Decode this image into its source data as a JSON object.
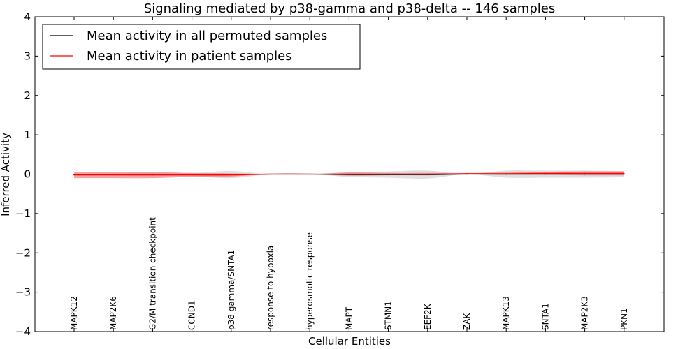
{
  "chart_data": {
    "type": "line",
    "title": "Signaling mediated by p38-gamma and p38-delta -- 146 samples",
    "xlabel": "Cellular Entities",
    "ylabel": "Inferred Activity",
    "ylim": [
      -4,
      4
    ],
    "yticks": [
      4,
      3,
      2,
      1,
      0,
      -1,
      -2,
      -3,
      -4
    ],
    "ytick_labels": [
      "4",
      "3",
      "2",
      "1",
      "0",
      "−1",
      "−2",
      "−3",
      "−4"
    ],
    "categories": [
      "MAPK12",
      "MAP2K6",
      "G2/M transition checkpoint",
      "CCND1",
      "p38 gamma/SNTA1",
      "response to hypoxia",
      "hyperosmotic response",
      "MAPT",
      "STMN1",
      "EEF2K",
      "ZAK",
      "MAPK13",
      "SNTA1",
      "MAP2K3",
      "PKN1"
    ],
    "legend_position": "top-left",
    "series": [
      {
        "name": "Mean activity in all permuted samples",
        "color": "#000000",
        "band_color": "#bbbbbb",
        "values": [
          -0.01,
          -0.01,
          -0.01,
          -0.01,
          -0.01,
          0.0,
          0.0,
          -0.01,
          -0.01,
          -0.01,
          0.0,
          0.0,
          0.0,
          0.0,
          0.0
        ],
        "band": [
          0.02,
          0.03,
          0.04,
          0.04,
          0.09,
          0.0,
          0.0,
          0.06,
          0.08,
          0.1,
          0.0,
          0.09,
          0.09,
          0.09,
          0.08
        ]
      },
      {
        "name": "Mean activity in patient samples",
        "color": "#ff0000",
        "band_color": "#ee7777",
        "values": [
          -0.02,
          -0.02,
          -0.02,
          -0.02,
          -0.02,
          0.0,
          0.0,
          0.0,
          0.0,
          0.0,
          0.01,
          0.01,
          0.02,
          0.02,
          0.02
        ],
        "band": [
          0.08,
          0.08,
          0.08,
          0.05,
          0.04,
          0.0,
          0.0,
          0.04,
          0.03,
          0.03,
          0.02,
          0.03,
          0.04,
          0.05,
          0.05
        ]
      }
    ]
  }
}
